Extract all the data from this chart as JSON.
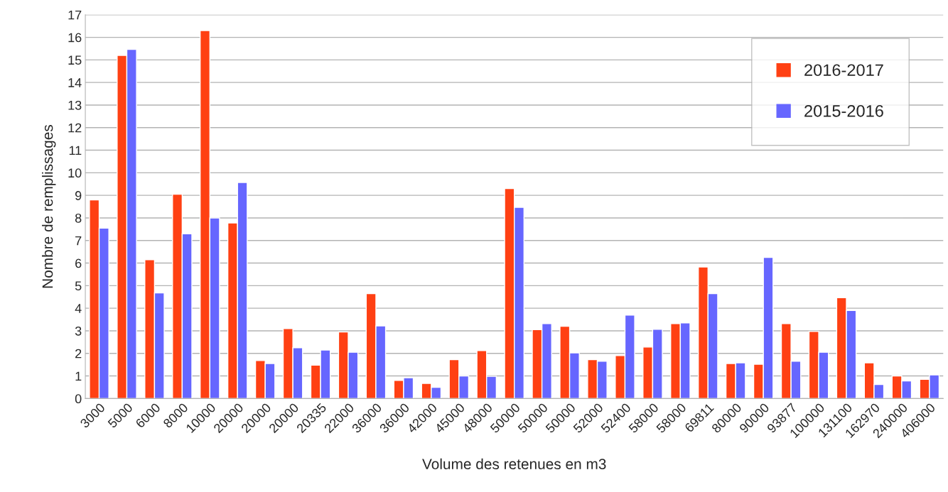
{
  "chart_data": {
    "type": "bar",
    "xlabel": "Volume des retenues en m3",
    "ylabel": "Nombre de remplissages",
    "categories": [
      "3000",
      "5000",
      "6000",
      "8000",
      "10000",
      "20000",
      "20000",
      "20000",
      "20335",
      "22000",
      "36000",
      "36000",
      "42000",
      "45000",
      "48000",
      "50000",
      "50000",
      "50000",
      "52000",
      "52400",
      "58000",
      "58000",
      "69811",
      "80000",
      "90000",
      "93877",
      "100000",
      "131100",
      "162970",
      "240000",
      "406000"
    ],
    "series": [
      {
        "name": "2016-2017",
        "color": "#ff4013",
        "values": [
          8.8,
          15.2,
          6.15,
          9.05,
          16.3,
          7.78,
          1.68,
          3.1,
          1.48,
          2.95,
          4.65,
          0.8,
          0.67,
          1.72,
          2.12,
          9.3,
          3.05,
          3.2,
          1.72,
          1.9,
          2.28,
          3.32,
          5.83,
          1.55,
          1.52,
          3.32,
          2.97,
          4.47,
          1.58,
          1.0,
          0.85
        ]
      },
      {
        "name": "2015-2016",
        "color": "#6666ff",
        "values": [
          7.55,
          15.47,
          4.68,
          7.3,
          8.0,
          9.57,
          1.55,
          2.25,
          2.15,
          2.05,
          3.22,
          0.92,
          0.5,
          1.0,
          0.98,
          8.47,
          3.32,
          2.02,
          1.65,
          3.7,
          3.07,
          3.35,
          4.65,
          1.58,
          6.25,
          1.65,
          2.05,
          3.9,
          0.62,
          0.78,
          1.05
        ]
      }
    ],
    "ylim": [
      0,
      17
    ],
    "yticks": [
      0,
      1,
      2,
      3,
      4,
      5,
      6,
      7,
      8,
      9,
      10,
      11,
      12,
      13,
      14,
      15,
      16,
      17
    ],
    "grid": "y",
    "legend": "top right"
  }
}
